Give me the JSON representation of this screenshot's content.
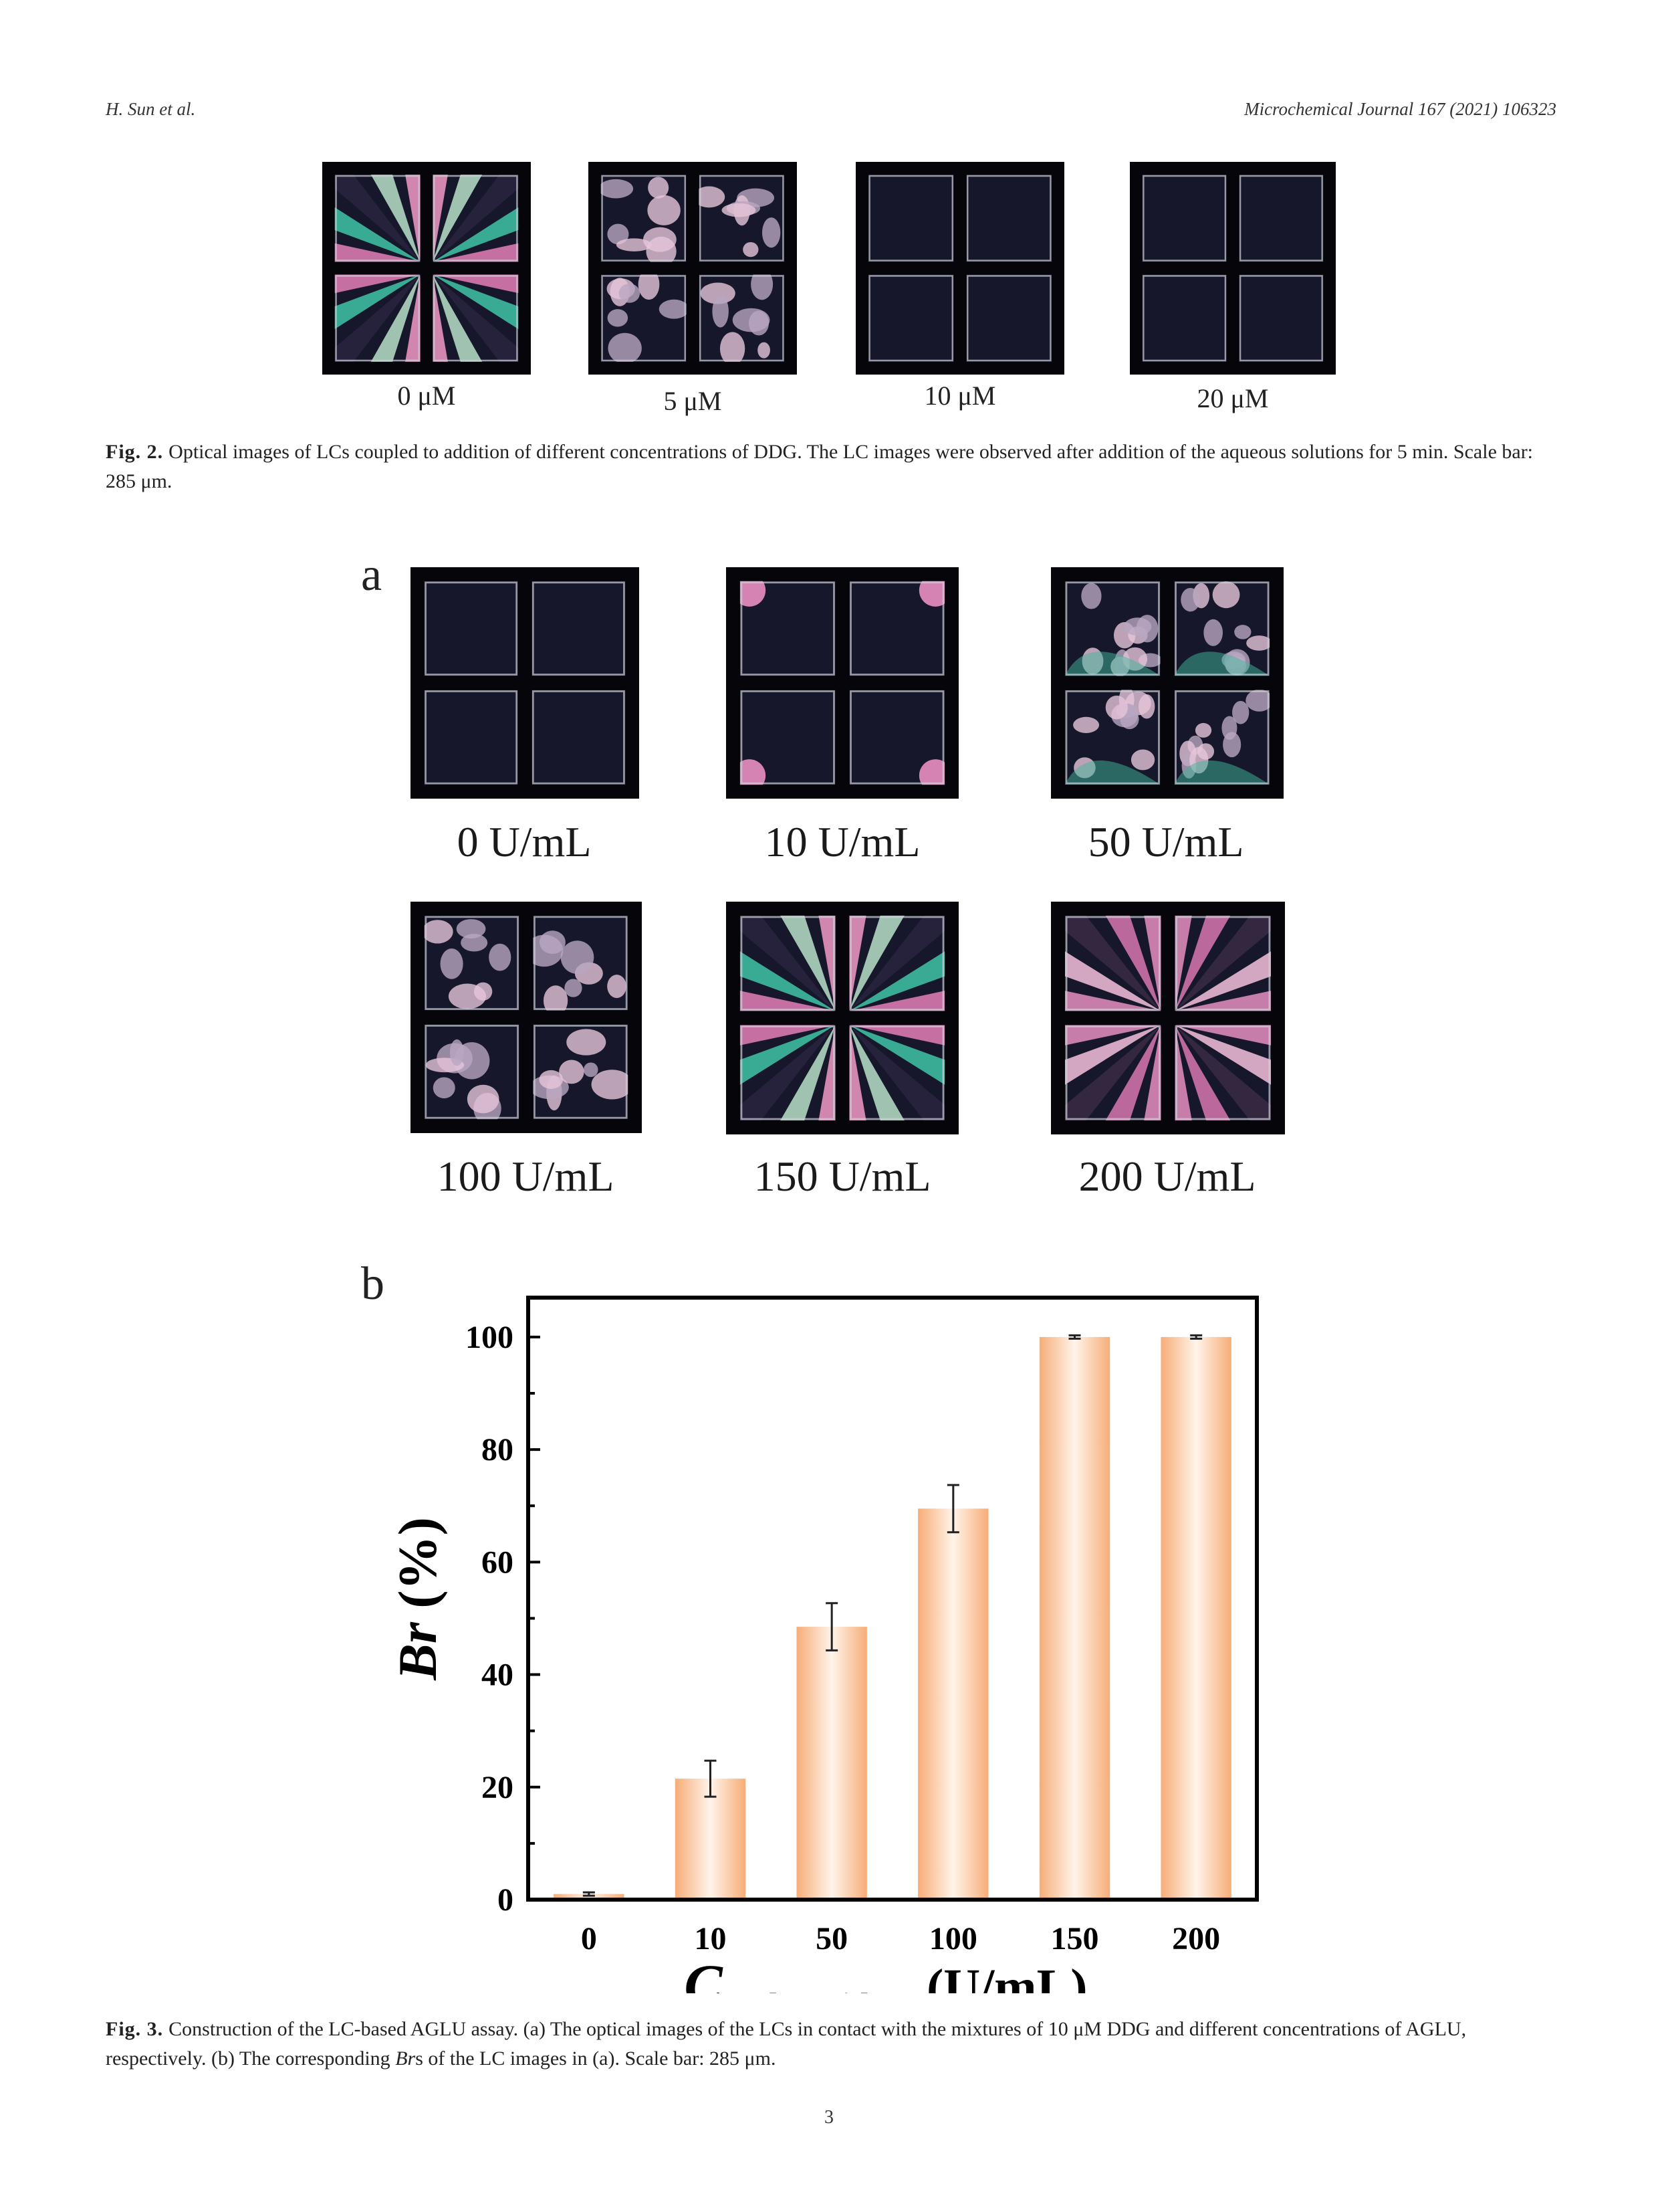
{
  "header": {
    "authors": "H. Sun et al.",
    "journal": "Microchemical Journal 167 (2021) 106323"
  },
  "fig2": {
    "images": [
      {
        "label": "0 μM",
        "state": "colored-bright"
      },
      {
        "label": "5 μM",
        "state": "domains"
      },
      {
        "label": "10 μM",
        "state": "dark"
      },
      {
        "label": "20 μM",
        "state": "dark"
      }
    ],
    "caption_label": "Fig. 2.",
    "caption_text": "Optical images of LCs coupled to addition of different concentrations of DDG. The LC images were observed after addition of the aqueous solutions for 5 min. Scale bar: 285 μm."
  },
  "fig3": {
    "panel_a": "a",
    "panel_b": "b",
    "images": [
      {
        "label": "0 U/mL",
        "state": "dark"
      },
      {
        "label": "10 U/mL",
        "state": "corners"
      },
      {
        "label": "50 U/mL",
        "state": "partial"
      },
      {
        "label": "100 U/mL",
        "state": "domains"
      },
      {
        "label": "150 U/mL",
        "state": "colored-bright"
      },
      {
        "label": "200 U/mL",
        "state": "colored-pink"
      }
    ],
    "caption_label": "Fig. 3.",
    "caption_text_1": "Construction of the LC-based AGLU assay. (a) The optical images of the LCs in contact with the mixtures of 10 μM DDG and different concentrations of AGLU, respectively. (b) The corresponding ",
    "caption_italic": "Br",
    "caption_text_2": "s of the LC images in (a). Scale bar: 285 μm."
  },
  "chart_data": {
    "type": "bar",
    "categories": [
      "0",
      "10",
      "50",
      "100",
      "150",
      "200"
    ],
    "values": [
      1,
      21.5,
      48.5,
      69.5,
      100,
      100
    ],
    "errors": [
      0.3,
      3.2,
      4.2,
      4.2,
      0.3,
      0.3
    ],
    "ylabel_main": "Br",
    "ylabel_unit": "(%)",
    "xlabel_main": "C",
    "xlabel_sub": "α-glucosidase",
    "xlabel_unit": "(U/mL)",
    "yticks": [
      "0",
      "20",
      "40",
      "60",
      "80",
      "100"
    ],
    "ylim": [
      0,
      107
    ],
    "bar_color": "#f8b98c"
  },
  "page_number": "3"
}
